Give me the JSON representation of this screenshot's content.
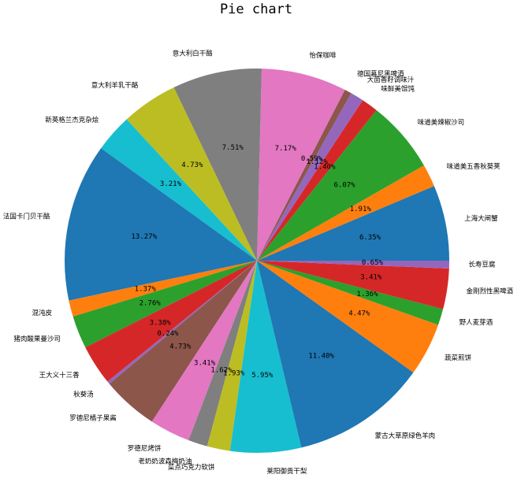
{
  "chart_data": {
    "type": "pie",
    "title": "Pie chart",
    "start_angle_deg": 0,
    "direction": "counterclockwise",
    "slices": [
      {
        "label": "上海大闸蟹",
        "value": 6.35,
        "pct_text": "6.35%",
        "color": "#1f77b4"
      },
      {
        "label": "味道美五香秋葵荚",
        "value": 1.91,
        "pct_text": "1.91%",
        "color": "#ff7f0e"
      },
      {
        "label": "味道美辣椒沙司",
        "value": 6.07,
        "pct_text": "6.07%",
        "color": "#2ca02c"
      },
      {
        "label": "味鲜美馄饨",
        "value": 1.4,
        "pct_text": "1.40%",
        "color": "#d62728"
      },
      {
        "label": "大茴香籽调味汁",
        "value": 1.12,
        "pct_text": "1.12%",
        "color": "#9467bd"
      },
      {
        "label": "德国慕尼黑啤酒",
        "value": 0.59,
        "pct_text": "0.59%",
        "color": "#8c564b"
      },
      {
        "label": "怡保咖啡",
        "value": 7.17,
        "pct_text": "7.17%",
        "color": "#e377c2"
      },
      {
        "label": "意大利白干酪",
        "value": 7.51,
        "pct_text": "7.51%",
        "color": "#7f7f7f"
      },
      {
        "label": "意大利羊乳干酪",
        "value": 4.73,
        "pct_text": "4.73%",
        "color": "#bcbd22"
      },
      {
        "label": "新英格兰杰克杂烩",
        "value": 3.21,
        "pct_text": "3.21%",
        "color": "#17becf"
      },
      {
        "label": "法国卡门贝干酪",
        "value": 13.27,
        "pct_text": "13.27%",
        "color": "#1f77b4"
      },
      {
        "label": "混沌皮",
        "value": 1.37,
        "pct_text": "1.37%",
        "color": "#ff7f0e"
      },
      {
        "label": "猪肉酸果曼沙司",
        "value": 2.76,
        "pct_text": "2.76%",
        "color": "#2ca02c"
      },
      {
        "label": "王大义十三香",
        "value": 3.38,
        "pct_text": "3.38%",
        "color": "#d62728"
      },
      {
        "label": "秋葵汤",
        "value": 0.24,
        "pct_text": "0.24%",
        "color": "#9467bd"
      },
      {
        "label": "罗德尼橘子果酱",
        "value": 4.73,
        "pct_text": "4.73%",
        "color": "#8c564b"
      },
      {
        "label": "罗德尼烤饼",
        "value": 3.41,
        "pct_text": "3.41%",
        "color": "#e377c2"
      },
      {
        "label": "老奶奶波森梅奶油",
        "value": 1.62,
        "pct_text": "1.62%",
        "color": "#7f7f7f"
      },
      {
        "label": "菜点巧克力软饼",
        "value": 1.93,
        "pct_text": "1.93%",
        "color": "#bcbd22"
      },
      {
        "label": "莱阳御贡干梨",
        "value": 5.95,
        "pct_text": "5.95%",
        "color": "#17becf"
      },
      {
        "label": "蒙古大草原绿色羊肉",
        "value": 11.4,
        "pct_text": "11.40%",
        "color": "#1f77b4"
      },
      {
        "label": "蔬菜煎饼",
        "value": 4.47,
        "pct_text": "4.47%",
        "color": "#ff7f0e"
      },
      {
        "label": "野人麦芽酒",
        "value": 1.36,
        "pct_text": "1.36%",
        "color": "#2ca02c"
      },
      {
        "label": "金刚烈性黑啤酒",
        "value": 3.41,
        "pct_text": "3.41%",
        "color": "#d62728"
      },
      {
        "label": "长寿豆腐",
        "value": 0.65,
        "pct_text": "0.65%",
        "color": "#9467bd"
      }
    ]
  }
}
